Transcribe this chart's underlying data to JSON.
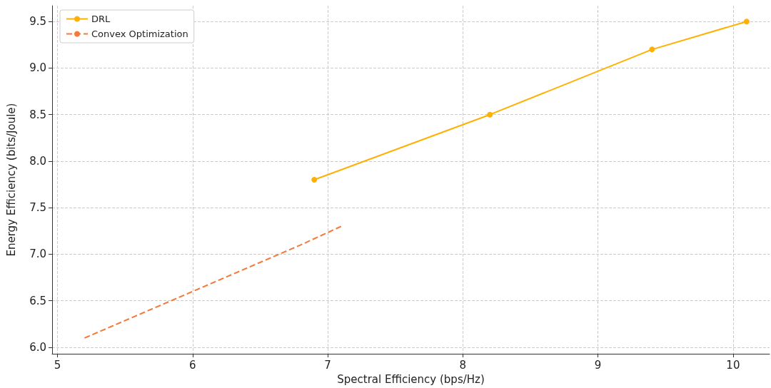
{
  "chart_data": {
    "type": "line",
    "xlabel": "Spectral Efficiency (bps/Hz)",
    "ylabel": "Energy Efficiency (bits/Joule)",
    "series": [
      {
        "name": "DRL",
        "color": "#ffb000",
        "x": [
          6.9,
          8.2,
          9.4,
          10.1
        ],
        "values": [
          7.8,
          8.5,
          9.2,
          9.5
        ],
        "marker": "circle",
        "line_style": "solid"
      },
      {
        "name": "Convex Optimization",
        "color": "#f5793a",
        "x": [
          5.2,
          6.8,
          7.1
        ],
        "values": [
          6.1,
          7.1,
          7.3
        ],
        "marker": "none",
        "line_style": "dashed"
      }
    ],
    "xlim": [
      4.96,
      10.27
    ],
    "xticks": [
      5,
      6,
      7,
      8,
      9,
      10
    ],
    "ylim": [
      5.93,
      9.67
    ],
    "yticks": [
      {
        "value": 6,
        "label": "6.0"
      },
      6.5,
      {
        "value": 7,
        "label": "7.0"
      },
      7.5,
      {
        "value": 8,
        "label": "8.0"
      },
      8.5,
      {
        "value": 9,
        "label": "9.0"
      },
      9.5
    ],
    "grid": true,
    "legend": "top left"
  }
}
